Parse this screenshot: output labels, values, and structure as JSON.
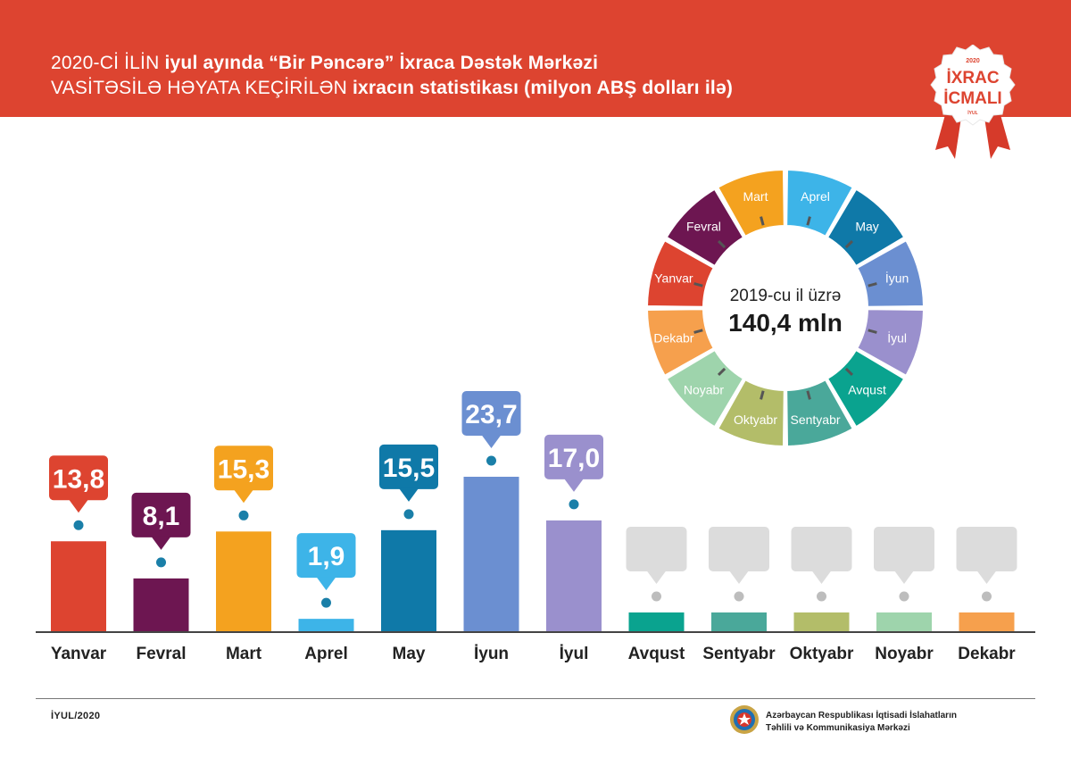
{
  "header": {
    "line1_light": "2020-Cİ İLİN ",
    "line1_bold": "iyul ayında “Bir Pəncərə” İxraca Dəstək Mərkəzi",
    "line2_light": "VASİTƏSİLƏ HƏYATA KEÇİRİLƏN ",
    "line2_bold": "ixracın statistikası (milyon ABŞ dolları ilə)"
  },
  "badge": {
    "year": "2020",
    "line1": "İXRAC",
    "line2": "İCMALI",
    "sub": "İYUL"
  },
  "donut": {
    "label": "2019-cu il üzrə",
    "total": "140,4 mln",
    "segments": [
      {
        "name": "Mart",
        "color": "#f4a21f"
      },
      {
        "name": "Aprel",
        "color": "#3db4e8"
      },
      {
        "name": "May",
        "color": "#0f79a8"
      },
      {
        "name": "İyun",
        "color": "#6b8fd1"
      },
      {
        "name": "İyul",
        "color": "#9a90cd"
      },
      {
        "name": "Avqust",
        "color": "#0aa38f"
      },
      {
        "name": "Sentyabr",
        "color": "#4aa89a"
      },
      {
        "name": "Oktyabr",
        "color": "#b3bd69"
      },
      {
        "name": "Noyabr",
        "color": "#9ed4ac"
      },
      {
        "name": "Dekabr",
        "color": "#f6a04d"
      },
      {
        "name": "Yanvar",
        "color": "#dd4430"
      },
      {
        "name": "Fevral",
        "color": "#6d1651"
      }
    ]
  },
  "chart_data": {
    "type": "bar",
    "title": "2020-ci ilin iyul ayında “Bir Pəncərə” İxraca Dəstək Mərkəzi vasitəsilə həyata keçirilən ixracın statistikası (milyon ABŞ dolları ilə)",
    "xlabel": "",
    "ylabel": "",
    "ylim": [
      0,
      30
    ],
    "categories": [
      "Yanvar",
      "Fevral",
      "Mart",
      "Aprel",
      "May",
      "İyun",
      "İyul",
      "Avqust",
      "Sentyabr",
      "Oktyabr",
      "Noyabr",
      "Dekabr"
    ],
    "values": [
      13.8,
      8.1,
      15.3,
      1.9,
      15.5,
      23.7,
      17.0,
      null,
      null,
      null,
      null,
      null
    ],
    "labels": [
      "13,8",
      "8,1",
      "15,3",
      "1,9",
      "15,5",
      "23,7",
      "17,0",
      "",
      "",
      "",
      "",
      ""
    ],
    "colors": [
      "#dd4430",
      "#6d1651",
      "#f4a21f",
      "#3db4e8",
      "#0f79a8",
      "#6b8fd1",
      "#9a90cd",
      "#0aa38f",
      "#4aa89a",
      "#b3bd69",
      "#9ed4ac",
      "#f6a04d"
    ],
    "callout_empty_color": "#dcdcdc",
    "dot_color": "#1a7fa8",
    "empty_dot_color": "#bdbdbd"
  },
  "footer": {
    "date": "İYUL/2020",
    "org_line1": "Azərbaycan Respublikası İqtisadi İslahatların",
    "org_line2": "Təhlili və Kommunikasiya Mərkəzi"
  }
}
